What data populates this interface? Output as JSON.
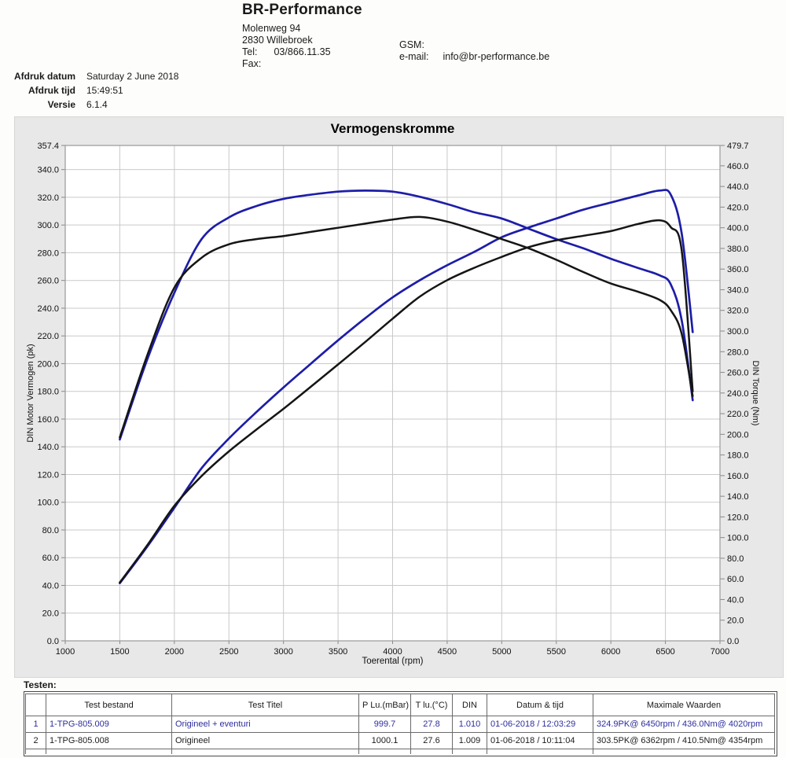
{
  "letterhead": {
    "company": "BR-Performance",
    "address1": "Molenweg 94",
    "address2": "2830 Willebroek",
    "tel_label": "Tel:",
    "tel": "03/866.11.35",
    "fax_label": "Fax:",
    "fax": "",
    "gsm_label": "GSM:",
    "gsm": "",
    "email_label": "e-mail:",
    "email": "info@br-performance.be"
  },
  "print_meta": {
    "datum_label": "Afdruk datum",
    "datum": "Saturday 2 June 2018",
    "tijd_label": "Afdruk tijd",
    "tijd": "15:49:51",
    "versie_label": "Versie",
    "versie": "6.1.4"
  },
  "chart_data": {
    "type": "line",
    "title": "Vermogenskromme",
    "xlabel": "Toerental (rpm)",
    "ylabel_left": "DIN Motor Vermogen (pk)",
    "ylabel_right": "DIN Torque (Nm)",
    "x_range": [
      1000,
      7000
    ],
    "x_ticks": [
      1000,
      1500,
      2000,
      2500,
      3000,
      3500,
      4000,
      4500,
      5000,
      5500,
      6000,
      6500,
      7000
    ],
    "y_left_range": [
      0,
      357.4
    ],
    "y_left_ticks": [
      0,
      20,
      40,
      60,
      80,
      100,
      120,
      140,
      160,
      180,
      200,
      220,
      240,
      260,
      280,
      300,
      320,
      340,
      357.4
    ],
    "y_right_range": [
      0,
      479.7
    ],
    "y_right_ticks": [
      0,
      20,
      40,
      60,
      80,
      100,
      120,
      140,
      160,
      180,
      200,
      220,
      240,
      260,
      280,
      300,
      320,
      340,
      360,
      380,
      400,
      420,
      440,
      460,
      479.7
    ],
    "grid": "on",
    "legend": "none",
    "rpm": [
      1500,
      1750,
      2000,
      2250,
      2500,
      2750,
      3000,
      3250,
      3500,
      3750,
      4000,
      4250,
      4500,
      4750,
      5000,
      5250,
      5500,
      5750,
      6000,
      6250,
      6450,
      6550,
      6650,
      6750
    ],
    "series": [
      {
        "name": "vermogen-origineel-plus-eventuri",
        "unit": "pk",
        "axis": "left",
        "color": "#1d1da8",
        "width": 2.7,
        "values": [
          41.6,
          67.8,
          96.0,
          124.6,
          146.0,
          164.9,
          182.8,
          199.9,
          216.8,
          232.8,
          247.8,
          260.2,
          271.0,
          280.7,
          291.2,
          298.3,
          304.7,
          311.1,
          316.2,
          321.3,
          324.9,
          321.8,
          293.6,
          222.7
        ]
      },
      {
        "name": "koppel-origineel-plus-eventuri",
        "unit": "Nm",
        "axis": "right",
        "color": "#1d1da8",
        "width": 2.7,
        "values": [
          195,
          272,
          337,
          389,
          410,
          421,
          428,
          432,
          435,
          436,
          435,
          430,
          423,
          415,
          409,
          399,
          389,
          380,
          370,
          361,
          353.8,
          345,
          310,
          233
        ]
      },
      {
        "name": "vermogen-origineel",
        "unit": "pk",
        "axis": "left",
        "color": "#151515",
        "width": 2.5,
        "values": [
          42.1,
          68.8,
          97.4,
          118.9,
          136.7,
          152.3,
          167.4,
          183.3,
          199.4,
          215.7,
          232.4,
          248.4,
          260.2,
          269.2,
          277.0,
          284.1,
          289.0,
          292.3,
          295.6,
          300.8,
          303.4,
          298.4,
          281.2,
          180.0
        ]
      },
      {
        "name": "koppel-origineel",
        "unit": "Nm",
        "axis": "right",
        "color": "#151515",
        "width": 2.5,
        "values": [
          197,
          276,
          342,
          371,
          384,
          389,
          392,
          396,
          400,
          404,
          408,
          410.5,
          406,
          398,
          389,
          380,
          369,
          357,
          346,
          338,
          330,
          320,
          297,
          237
        ]
      }
    ],
    "max_values": [
      "324.9PK@ 6450rpm / 436.0Nm@ 4020rpm",
      "303.5PK@ 6362rpm / 410.5Nm@ 4354rpm"
    ]
  },
  "tests": {
    "label": "Testen:",
    "headers": [
      "",
      "Test bestand",
      "Test Titel",
      "P Lu.(mBar)",
      "T lu.(°C)",
      "DIN",
      "Datum & tijd",
      "Maximale Waarden"
    ],
    "rows": [
      {
        "num": "1",
        "bestand": "1-TPG-805.009",
        "titel": "Origineel + eventuri",
        "p_lu": "999.7",
        "t_lu": "27.8",
        "din": "1.010",
        "datum": "01-06-2018 / 12:03:29",
        "max": "324.9PK@ 6450rpm / 436.0Nm@ 4020rpm",
        "ink": "#2d2d9f"
      },
      {
        "num": "2",
        "bestand": "1-TPG-805.008",
        "titel": "Origineel",
        "p_lu": "1000.1",
        "t_lu": "27.6",
        "din": "1.009",
        "datum": "01-06-2018 / 10:11:04",
        "max": "303.5PK@ 6362rpm / 410.5Nm@ 4354rpm",
        "ink": "#1c1c1c"
      }
    ]
  },
  "colors": {
    "tuned_line": "#1d1da8",
    "stock_line": "#151515",
    "chart_bg": "#e8e8e8",
    "plot_bg": "#ffffff",
    "grid": "#c9c9c9",
    "plot_border": "#9a9a9a"
  }
}
